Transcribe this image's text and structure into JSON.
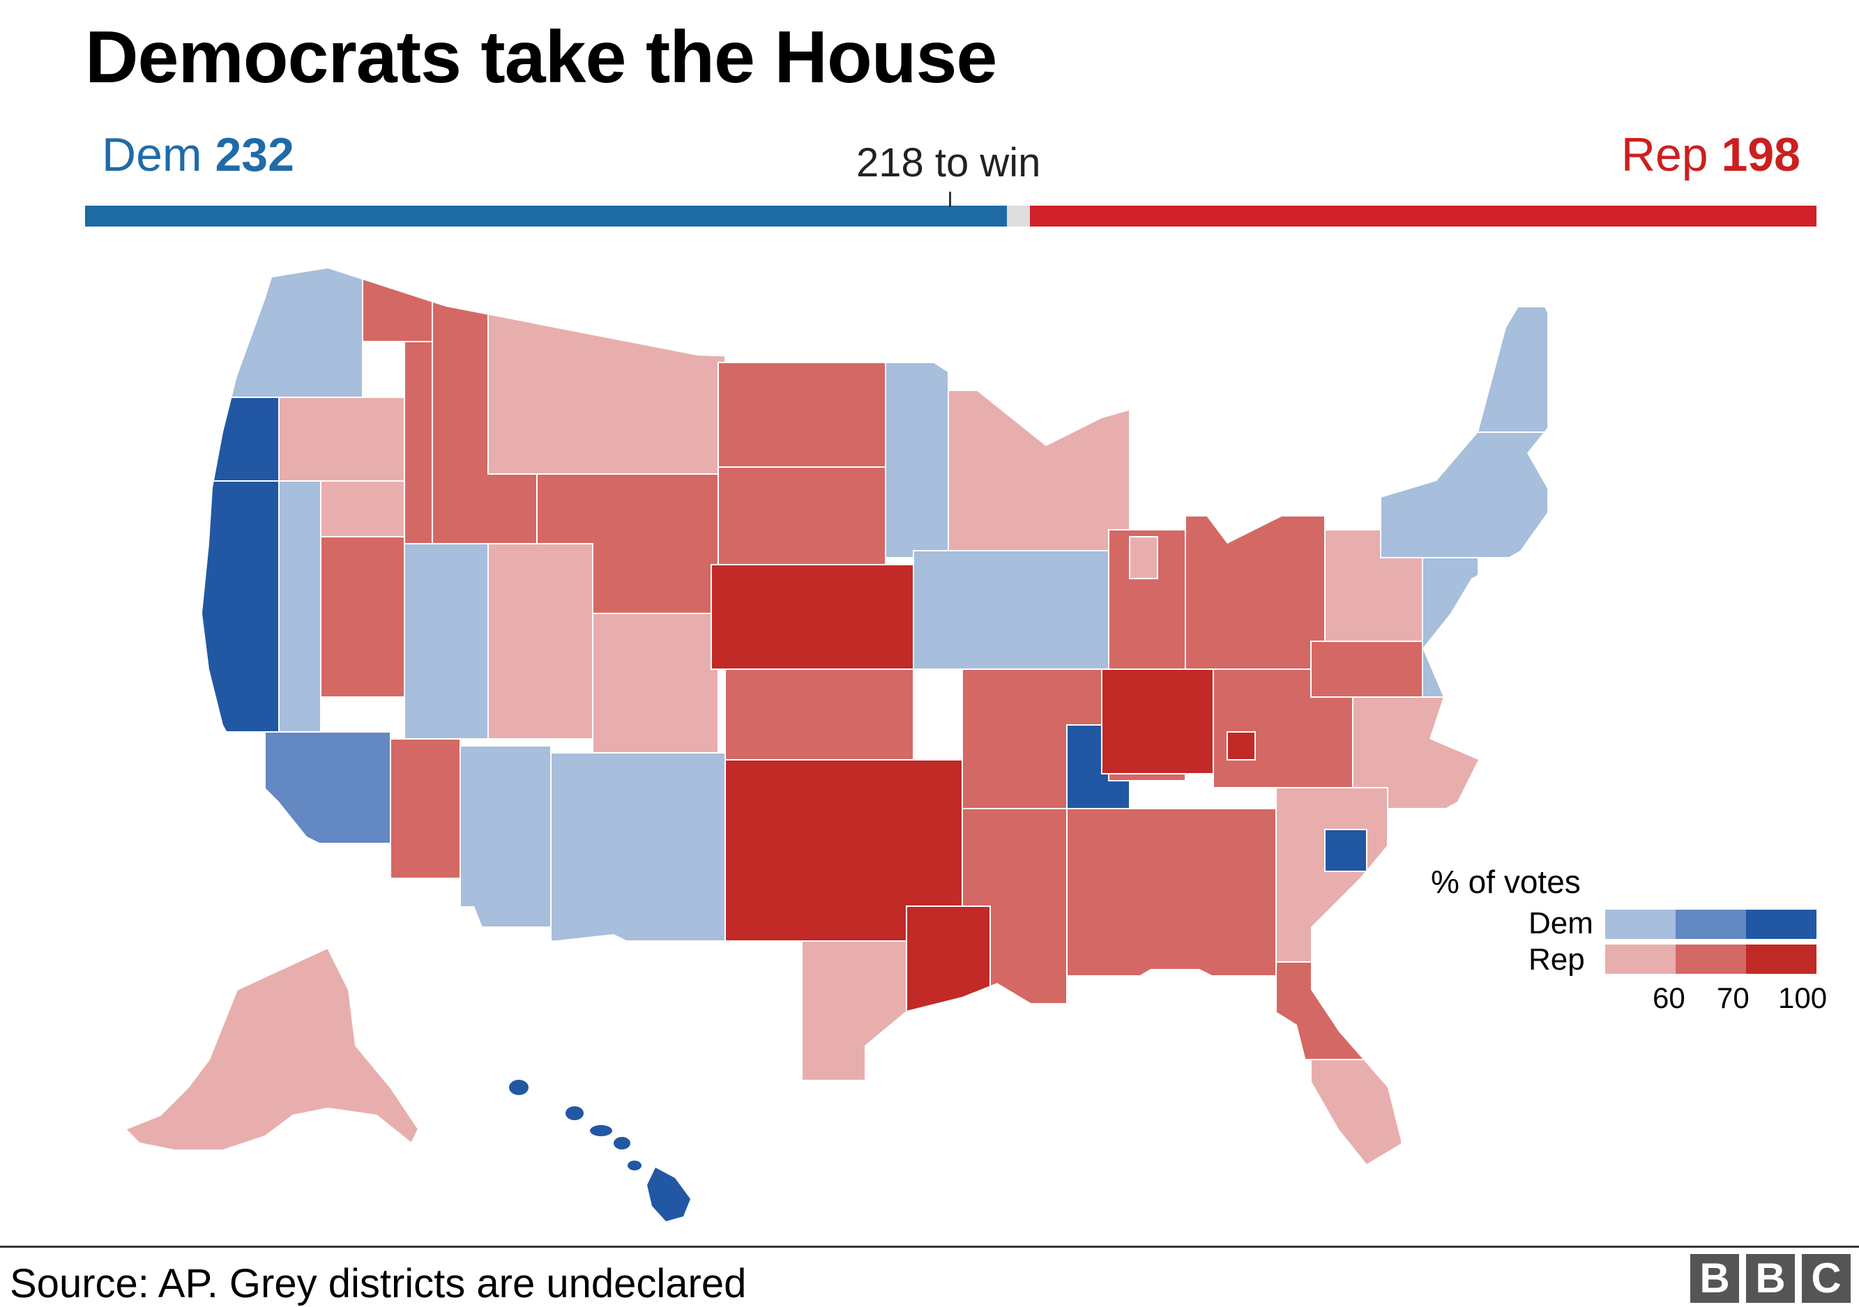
{
  "title": "Democrats take the House",
  "seats": {
    "dem_label": "Dem",
    "dem_count": "232",
    "rep_label": "Rep",
    "rep_count": "198",
    "threshold_label": "218 to win",
    "dem_share": 0.5333,
    "undeclared_share": 0.0115,
    "rep_share": 0.4552
  },
  "legend": {
    "title": "% of votes",
    "dem_label": "Dem",
    "rep_label": "Rep",
    "ticks": [
      "60",
      "70",
      "100"
    ],
    "dem_colors": [
      "#a7bedc",
      "#6388c2",
      "#2257a3"
    ],
    "rep_colors": [
      "#e8aeae",
      "#d46864",
      "#c12a26"
    ],
    "undeclared_color": "#dddddd"
  },
  "footer": {
    "source": "Source: AP. Grey districts are undeclared",
    "logo_letters": [
      "B",
      "B",
      "C"
    ]
  }
}
